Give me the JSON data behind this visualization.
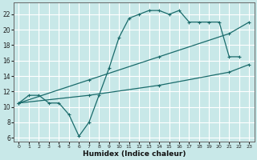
{
  "xlabel": "Humidex (Indice chaleur)",
  "background_color": "#c8e8e8",
  "grid_color": "#ffffff",
  "line_color": "#1a6b6b",
  "xlim": [
    -0.5,
    23.5
  ],
  "ylim": [
    5.5,
    23.5
  ],
  "xticks": [
    0,
    1,
    2,
    3,
    4,
    5,
    6,
    7,
    8,
    9,
    10,
    11,
    12,
    13,
    14,
    15,
    16,
    17,
    18,
    19,
    20,
    21,
    22,
    23
  ],
  "yticks": [
    6,
    8,
    10,
    12,
    14,
    16,
    18,
    20,
    22
  ],
  "curve1_x": [
    0,
    1,
    2,
    3,
    4,
    5,
    6,
    7,
    8,
    9,
    10,
    11,
    12,
    13,
    14,
    15,
    16,
    17,
    18,
    19,
    20,
    21,
    22
  ],
  "curve1_y": [
    10.5,
    11.5,
    11.5,
    10.5,
    10.5,
    9.0,
    6.2,
    8.0,
    11.5,
    15.0,
    19.0,
    21.5,
    22.0,
    22.5,
    22.5,
    22.0,
    22.5,
    21.0,
    21.0,
    21.0,
    21.0,
    16.5,
    16.5
  ],
  "curve2_x": [
    0,
    7,
    14,
    21,
    23
  ],
  "curve2_y": [
    10.5,
    13.5,
    16.5,
    19.5,
    21.0
  ],
  "curve3_x": [
    0,
    7,
    14,
    21,
    23
  ],
  "curve3_y": [
    10.5,
    11.5,
    12.8,
    14.5,
    15.5
  ]
}
